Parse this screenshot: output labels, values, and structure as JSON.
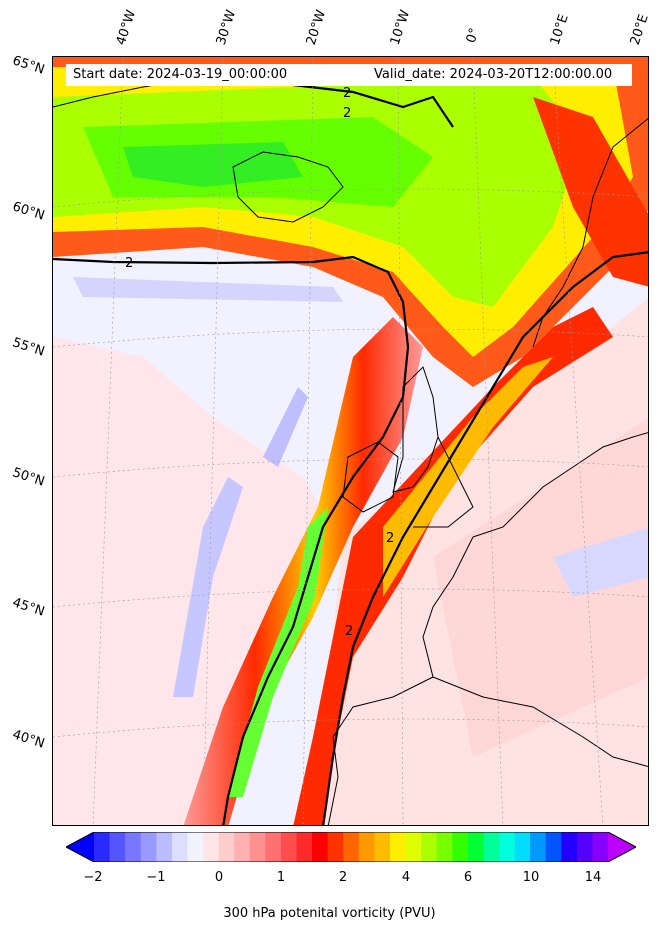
{
  "header": {
    "start_date": "Start date: 2024-03-19_00:00:00",
    "valid_date": "Valid_date: 2024-03-20T12:00:00.00"
  },
  "longitude_labels": [
    "40°W",
    "30°W",
    "20°W",
    "10°W",
    "0°",
    "10°E",
    "20°E"
  ],
  "latitude_labels": [
    "65°N",
    "60°N",
    "55°N",
    "50°N",
    "45°N",
    "40°N"
  ],
  "contour_labels": [
    "2",
    "2",
    "2",
    "2",
    "2"
  ],
  "colorbar": {
    "label": "300 hPa potenital vorticity (PVU)",
    "tick_labels": [
      "−2",
      "−1",
      "0",
      "1",
      "2",
      "4",
      "6",
      "10",
      "14"
    ],
    "extend": "both",
    "colors": [
      "#0000ff",
      "#2a2aff",
      "#5555ff",
      "#7777ff",
      "#9999ff",
      "#bbbbff",
      "#ddddff",
      "#f3f3ff",
      "#ffe5e5",
      "#ffcccc",
      "#ffb0b0",
      "#ff9090",
      "#ff7070",
      "#ff4d4d",
      "#ff2a2a",
      "#ff0000",
      "#ff3300",
      "#ff6600",
      "#ff9900",
      "#ffbb00",
      "#ffee00",
      "#ddff00",
      "#aaff00",
      "#77ff00",
      "#33ff00",
      "#00ff33",
      "#00ff99",
      "#00ffdd",
      "#00ddff",
      "#0099ff",
      "#0055ff",
      "#2200ff",
      "#5500ff",
      "#8800ff",
      "#bb00ff"
    ]
  },
  "colors": {
    "negative_pv": "#eeeeff",
    "low_pv": "#ffe0e0",
    "jet_red": "#ff2a00",
    "high_pv_green": "#66ff00",
    "coastline": "#000000"
  }
}
